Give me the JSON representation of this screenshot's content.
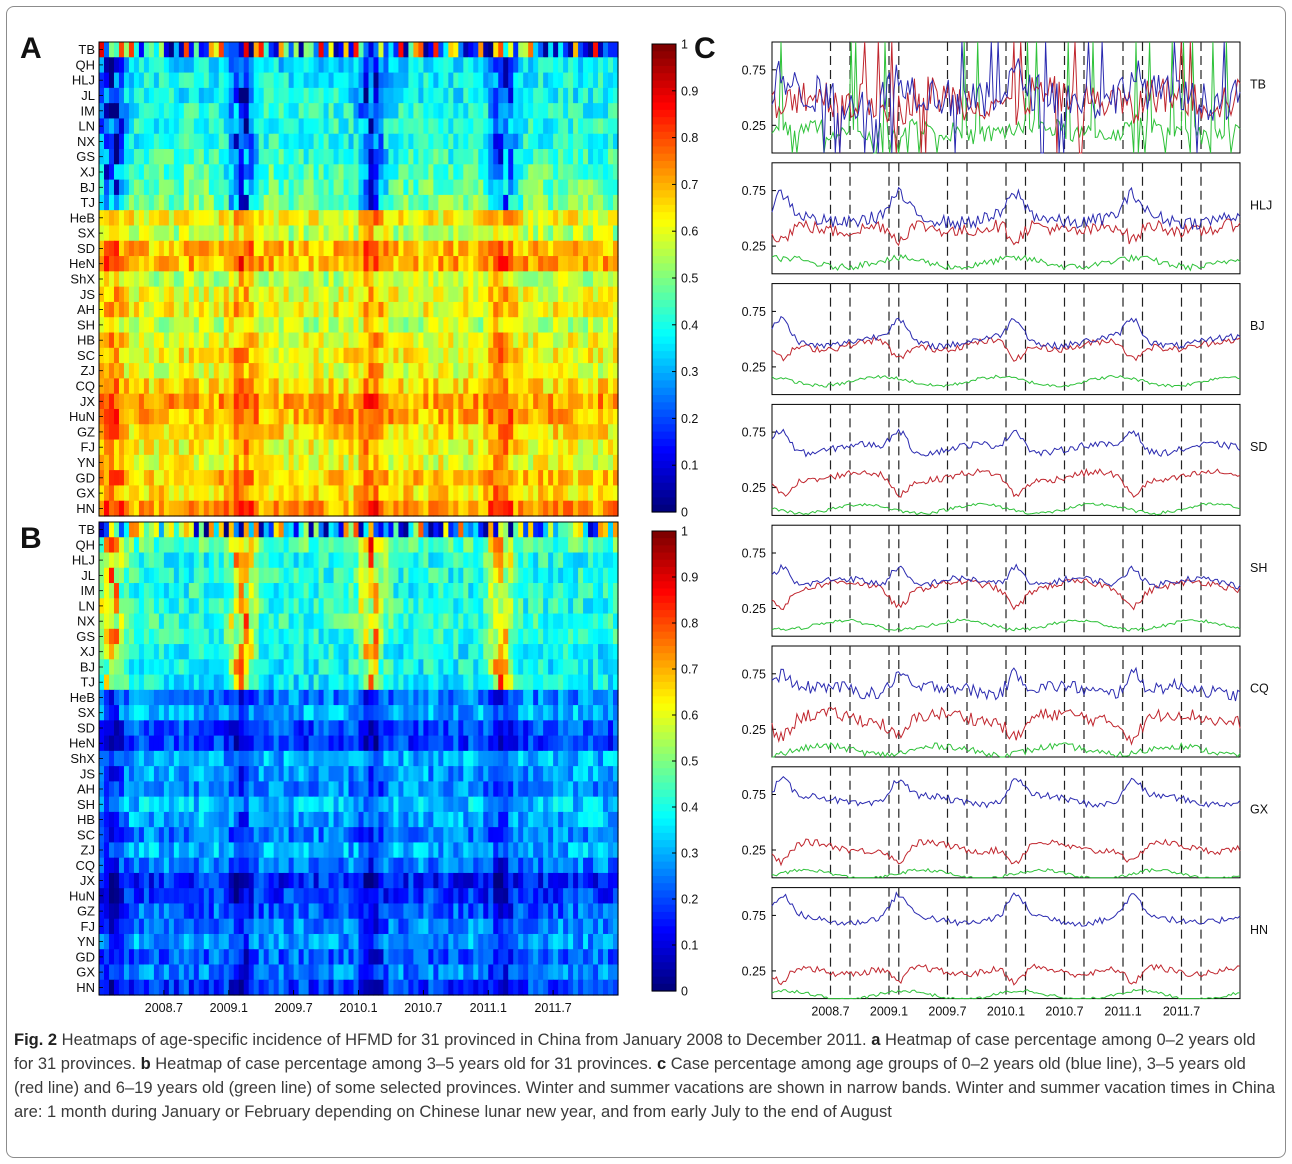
{
  "panels": {
    "A": {
      "letter": "A"
    },
    "B": {
      "letter": "B"
    },
    "C": {
      "letter": "C"
    }
  },
  "caption": {
    "fig_label": "Fig. 2",
    "text_1": " Heatmaps of age-specific incidence of HFMD for 31 provinced in China from January 2008 to December 2011. ",
    "a_label": "a",
    "text_2": " Heatmap of case percentage among 0–2 years old for 31 provinces. ",
    "b_label": "b",
    "text_3": " Heatmap of case percentage among 3–5 years old for 31 provinces. ",
    "c_label": "c",
    "text_4": " Case percentage among age groups of 0–2 years old (blue line), 3–5 years old (red line) and 6–19 years old (green line) of some selected provinces. Winter and summer vacations are shown in narrow bands. Winter and summer vacation times in China are: 1 month during January or February depending on Chinese lunar new year, and from early July to the end of August"
  },
  "colors": {
    "blue_line": "#2b2bb0",
    "red_line": "#c0262e",
    "green_line": "#2fc23a",
    "frame": "#8c8c8c"
  },
  "chart_data": [
    {
      "type": "heatmap",
      "panel": "A",
      "rows": [
        "TB",
        "QH",
        "HLJ",
        "JL",
        "IM",
        "LN",
        "NX",
        "GS",
        "XJ",
        "BJ",
        "TJ",
        "HeB",
        "SX",
        "SD",
        "HeN",
        "ShX",
        "JS",
        "AH",
        "SH",
        "HB",
        "SC",
        "ZJ",
        "CQ",
        "JX",
        "HuN",
        "GZ",
        "FJ",
        "YN",
        "GD",
        "GX",
        "HN"
      ],
      "row_mean_values": [
        0.12,
        0.35,
        0.38,
        0.38,
        0.4,
        0.4,
        0.4,
        0.42,
        0.45,
        0.47,
        0.48,
        0.62,
        0.55,
        0.68,
        0.7,
        0.55,
        0.6,
        0.62,
        0.55,
        0.6,
        0.62,
        0.6,
        0.65,
        0.72,
        0.7,
        0.65,
        0.62,
        0.6,
        0.68,
        0.65,
        0.72
      ],
      "x_range": [
        "2008.1",
        "2011.12"
      ],
      "colorbar": {
        "min": 0,
        "max": 1,
        "ticks": [
          "0",
          "0.1",
          "0.2",
          "0.3",
          "0.4",
          "0.5",
          "0.6",
          "0.7",
          "0.8",
          "0.9",
          "1"
        ],
        "colormap": "jet"
      }
    },
    {
      "type": "heatmap",
      "panel": "B",
      "rows": [
        "TB",
        "QH",
        "HLJ",
        "JL",
        "IM",
        "LN",
        "NX",
        "GS",
        "XJ",
        "BJ",
        "TJ",
        "HeB",
        "SX",
        "SD",
        "HeN",
        "ShX",
        "JS",
        "AH",
        "SH",
        "HB",
        "SC",
        "ZJ",
        "CQ",
        "JX",
        "HuN",
        "GZ",
        "FJ",
        "YN",
        "GD",
        "GX",
        "HN"
      ],
      "row_mean_values": [
        0.3,
        0.45,
        0.4,
        0.4,
        0.4,
        0.4,
        0.42,
        0.4,
        0.38,
        0.38,
        0.36,
        0.25,
        0.3,
        0.2,
        0.18,
        0.3,
        0.28,
        0.26,
        0.32,
        0.3,
        0.25,
        0.3,
        0.25,
        0.15,
        0.18,
        0.22,
        0.25,
        0.28,
        0.22,
        0.25,
        0.18
      ],
      "x_ticks": [
        "2008.7",
        "2009.1",
        "2009.7",
        "2010.1",
        "2010.7",
        "2011.1",
        "2011.7"
      ],
      "colorbar": {
        "min": 0,
        "max": 1,
        "ticks": [
          "0",
          "0.1",
          "0.2",
          "0.3",
          "0.4",
          "0.5",
          "0.6",
          "0.7",
          "0.8",
          "0.9",
          "1"
        ],
        "colormap": "jet"
      }
    },
    {
      "type": "line",
      "panel": "C",
      "subplots": [
        {
          "name": "TB",
          "y_ticks": [
            "0.75",
            "0.25"
          ],
          "levels": {
            "blue": 0.5,
            "red": 0.5,
            "green": 0.2
          }
        },
        {
          "name": "HLJ",
          "y_ticks": [
            "0.75",
            "0.25"
          ],
          "levels": {
            "blue": 0.5,
            "red": 0.42,
            "green": 0.1
          }
        },
        {
          "name": "BJ",
          "y_ticks": [
            "0.75",
            "0.25"
          ],
          "levels": {
            "blue": 0.48,
            "red": 0.45,
            "green": 0.12
          }
        },
        {
          "name": "SD",
          "y_ticks": [
            "0.75",
            "0.25"
          ],
          "levels": {
            "blue": 0.6,
            "red": 0.35,
            "green": 0.06
          }
        },
        {
          "name": "SH",
          "y_ticks": [
            "0.75",
            "0.25"
          ],
          "levels": {
            "blue": 0.48,
            "red": 0.45,
            "green": 0.1
          }
        },
        {
          "name": "CQ",
          "y_ticks": [
            "0.75",
            "0.25"
          ],
          "levels": {
            "blue": 0.6,
            "red": 0.35,
            "green": 0.06
          }
        },
        {
          "name": "GX",
          "y_ticks": [
            "0.75",
            "0.25"
          ],
          "levels": {
            "blue": 0.7,
            "red": 0.28,
            "green": 0.03
          }
        },
        {
          "name": "HN",
          "y_ticks": [
            "0.75",
            "0.25"
          ],
          "levels": {
            "blue": 0.72,
            "red": 0.26,
            "green": 0.03
          }
        }
      ],
      "x_ticks": [
        "2008.7",
        "2009.1",
        "2009.7",
        "2010.1",
        "2010.7",
        "2011.1",
        "2011.7"
      ],
      "series": [
        {
          "name": "0–2 years old",
          "color": "blue"
        },
        {
          "name": "3–5 years old",
          "color": "red"
        },
        {
          "name": "6–19 years old",
          "color": "green"
        }
      ],
      "vacation_bands": [
        "2008.7",
        "2008.9",
        "2009.1",
        "2009.2",
        "2009.7",
        "2009.9",
        "2010.1",
        "2010.3",
        "2010.7",
        "2010.9",
        "2011.1",
        "2011.3",
        "2011.7",
        "2011.9"
      ]
    }
  ]
}
